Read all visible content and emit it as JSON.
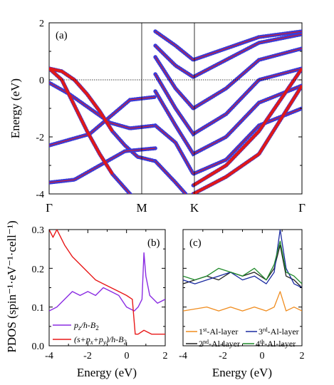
{
  "colors": {
    "band_main": "#3b3bd6",
    "band_red": "#e01818",
    "purple": "#8a2be2",
    "red": "#e81818",
    "orange": "#f08c1e",
    "navy": "#1a2aa0",
    "dark": "#222222",
    "green": "#1f8a2a"
  },
  "chart_data": [
    {
      "type": "line",
      "panel_label": "(a)",
      "xlabel": "",
      "ylabel": "Energy (eV)",
      "x_ticks": [
        "Γ",
        "M",
        "K",
        "Γ"
      ],
      "ylim": [
        -4,
        2
      ],
      "y_ticks": [
        "2",
        "0",
        "-2",
        "-4"
      ],
      "fermi_level": 0,
      "series": [
        {
          "x": [
            0,
            0.05,
            0.1,
            0.15,
            0.2,
            0.25,
            0.3,
            0.35,
            0.42
          ],
          "values": [
            0.4,
            0.3,
            0.0,
            -0.5,
            -1.1,
            -1.8,
            -2.3,
            -2.7,
            -2.85
          ]
        },
        {
          "x": [
            0,
            0.05,
            0.1,
            0.15,
            0.2,
            0.25,
            0.3,
            0.35,
            0.42
          ],
          "values": [
            0.4,
            0.0,
            -0.9,
            -1.8,
            -2.6,
            -3.3,
            -3.8,
            -4.3,
            -4.8
          ]
        },
        {
          "x": [
            0,
            0.08,
            0.16,
            0.24,
            0.32,
            0.42
          ],
          "values": [
            -0.1,
            -0.5,
            -1.0,
            -1.5,
            -1.7,
            -1.6
          ]
        },
        {
          "x": [
            0,
            0.08,
            0.16,
            0.24,
            0.32,
            0.42
          ],
          "values": [
            -2.3,
            -2.1,
            -1.9,
            -1.3,
            -0.7,
            -0.6
          ]
        },
        {
          "x": [
            0,
            0.1,
            0.2,
            0.3,
            0.42
          ],
          "values": [
            -3.6,
            -3.5,
            -3.0,
            -2.5,
            -2.4
          ]
        },
        {
          "x": [
            0.42,
            0.5,
            0.57
          ],
          "values": [
            -2.85,
            -3.6,
            -4.3
          ]
        },
        {
          "x": [
            0.42,
            0.5,
            0.57,
            0.7,
            0.83,
            1.0
          ],
          "values": [
            1.7,
            1.2,
            0.7,
            1.1,
            1.5,
            1.7
          ]
        },
        {
          "x": [
            0.42,
            0.5,
            0.57,
            0.7,
            0.83,
            1.0
          ],
          "values": [
            1.2,
            0.5,
            0.1,
            0.7,
            1.3,
            1.6
          ]
        },
        {
          "x": [
            0.42,
            0.5,
            0.57,
            0.7,
            0.83,
            1.0
          ],
          "values": [
            0.8,
            -0.3,
            -1.0,
            -0.3,
            0.7,
            1.1
          ]
        },
        {
          "x": [
            0.42,
            0.5,
            0.57,
            0.7,
            0.83,
            1.0
          ],
          "values": [
            0.2,
            -1.0,
            -1.9,
            -1.2,
            0.0,
            0.4
          ]
        },
        {
          "x": [
            0.42,
            0.5,
            0.57,
            0.7,
            0.83,
            1.0
          ],
          "values": [
            -0.4,
            -1.6,
            -2.6,
            -2.0,
            -0.8,
            -0.2
          ]
        },
        {
          "x": [
            0.42,
            0.5,
            0.57,
            0.7,
            0.83,
            1.0
          ],
          "values": [
            -1.6,
            -2.2,
            -3.3,
            -2.8,
            -1.6,
            -1.0
          ]
        },
        {
          "x": [
            0.57,
            0.7,
            0.83,
            1.0
          ],
          "values": [
            -4.0,
            -3.4,
            -2.6,
            -0.2
          ]
        },
        {
          "x": [
            0.57,
            0.7,
            0.83,
            1.0
          ],
          "values": [
            -3.7,
            -3.0,
            -1.8,
            0.4
          ]
        }
      ]
    },
    {
      "type": "line",
      "panel_label": "(b)",
      "xlabel": "Energy (eV)",
      "ylabel": "PDOS (spin⁻¹·eV⁻¹·cell⁻¹)",
      "xlim": [
        -4,
        2
      ],
      "ylim": [
        0,
        0.3
      ],
      "x_ticks": [
        "-4",
        "-2",
        "0",
        "2"
      ],
      "y_ticks": [
        "0.0",
        "0.1",
        "0.2",
        "0.3"
      ],
      "legend": {
        "placement": "bottom-left"
      },
      "series": [
        {
          "name": "p_z/h-B₂",
          "name_parts": [
            "p",
            "z",
            "/h-B",
            "2"
          ],
          "x": [
            -4,
            -3.6,
            -3.2,
            -2.8,
            -2.4,
            -2.0,
            -1.6,
            -1.2,
            -0.8,
            -0.4,
            0.0,
            0.4,
            0.6,
            0.8,
            0.9,
            1.0,
            1.2,
            1.6,
            2.0
          ],
          "values": [
            0.09,
            0.1,
            0.12,
            0.14,
            0.13,
            0.14,
            0.13,
            0.15,
            0.14,
            0.13,
            0.1,
            0.09,
            0.1,
            0.12,
            0.24,
            0.18,
            0.13,
            0.11,
            0.12
          ]
        },
        {
          "name": "(s+p_x+p_y)/h-B₂",
          "name_parts": [
            "(s+p",
            "x",
            "+p",
            "y",
            ")/h-B",
            "2"
          ],
          "x": [
            -4,
            -3.8,
            -3.6,
            -3.2,
            -2.8,
            -2.4,
            -2.0,
            -1.6,
            -1.2,
            -0.8,
            -0.4,
            0.0,
            0.3,
            0.45,
            0.6,
            0.9,
            1.3,
            2.0
          ],
          "values": [
            0.3,
            0.28,
            0.3,
            0.26,
            0.23,
            0.21,
            0.19,
            0.17,
            0.16,
            0.15,
            0.14,
            0.13,
            0.12,
            0.03,
            0.03,
            0.04,
            0.03,
            0.03
          ]
        }
      ]
    },
    {
      "type": "line",
      "panel_label": "(c)",
      "xlabel": "Energy (eV)",
      "xlim": [
        -4,
        2
      ],
      "ylim": [
        0,
        0.3
      ],
      "x_ticks": [
        "-4",
        "-2",
        "0",
        "2"
      ],
      "legend": {
        "placement": "bottom"
      },
      "series": [
        {
          "name": "1st-Al-layer",
          "name_parts": [
            "1",
            "st",
            "-Al-layer"
          ],
          "x": [
            -4,
            -3.4,
            -2.8,
            -2.2,
            -1.6,
            -1.0,
            -0.4,
            0.2,
            0.6,
            0.9,
            1.2,
            1.6,
            2.0
          ],
          "values": [
            0.09,
            0.095,
            0.1,
            0.09,
            0.1,
            0.09,
            0.1,
            0.09,
            0.1,
            0.14,
            0.09,
            0.1,
            0.09
          ]
        },
        {
          "name": "2nd-Al-layer",
          "name_parts": [
            "2",
            "nd",
            "-Al-layer"
          ],
          "x": [
            -4,
            -3.4,
            -2.8,
            -2.2,
            -1.6,
            -1.0,
            -0.4,
            0.2,
            0.6,
            0.9,
            1.2,
            1.6,
            2.0
          ],
          "values": [
            0.16,
            0.17,
            0.18,
            0.17,
            0.19,
            0.18,
            0.19,
            0.17,
            0.2,
            0.26,
            0.18,
            0.17,
            0.15
          ]
        },
        {
          "name": "3rd-Al-layer",
          "name_parts": [
            "3",
            "rd",
            "-Al-layer"
          ],
          "x": [
            -4,
            -3.4,
            -2.8,
            -2.2,
            -1.6,
            -1.0,
            -0.4,
            0.2,
            0.6,
            0.9,
            1.2,
            1.6,
            2.0
          ],
          "values": [
            0.17,
            0.16,
            0.17,
            0.18,
            0.19,
            0.17,
            0.18,
            0.16,
            0.19,
            0.3,
            0.2,
            0.16,
            0.15
          ]
        },
        {
          "name": "4th-Al-layer",
          "name_parts": [
            "4",
            "th",
            "-Al-layer"
          ],
          "x": [
            -4,
            -3.4,
            -2.8,
            -2.2,
            -1.6,
            -1.0,
            -0.4,
            0.2,
            0.6,
            0.9,
            1.2,
            1.6,
            2.0
          ],
          "values": [
            0.18,
            0.17,
            0.18,
            0.2,
            0.19,
            0.18,
            0.2,
            0.17,
            0.21,
            0.27,
            0.19,
            0.18,
            0.16
          ]
        }
      ]
    }
  ]
}
